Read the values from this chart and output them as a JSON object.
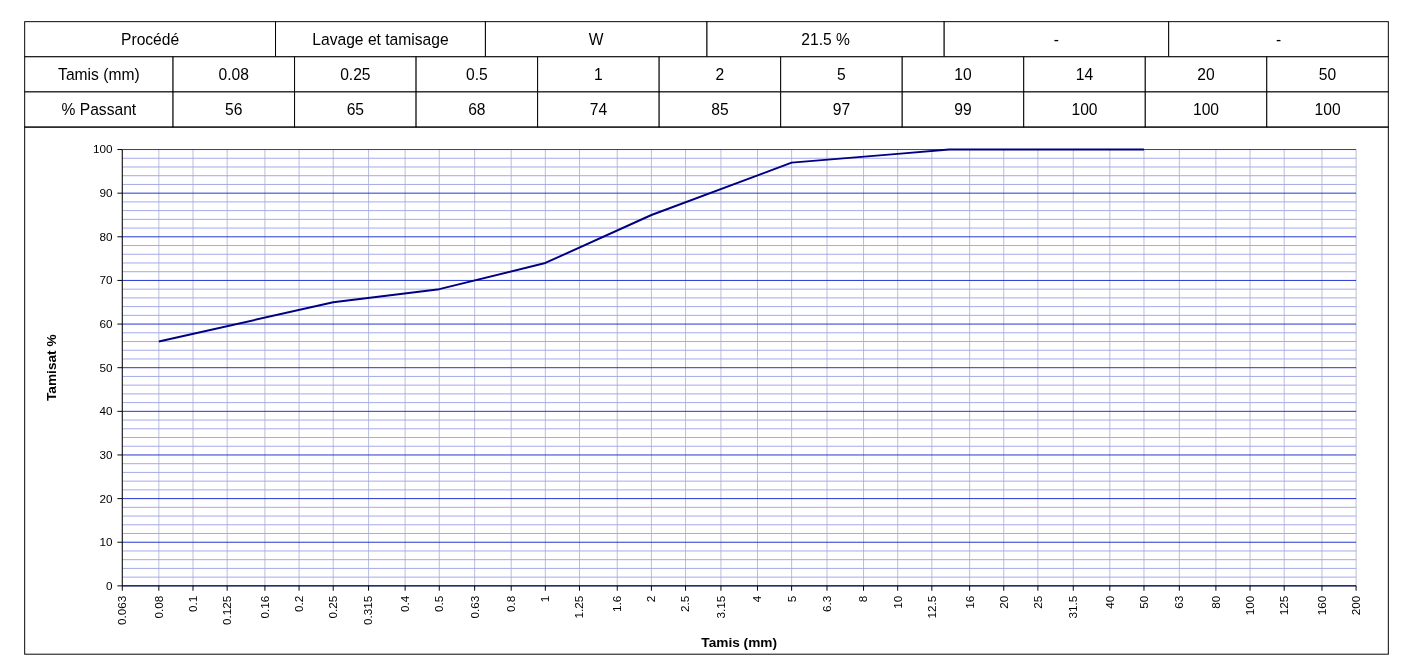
{
  "chart_data": {
    "type": "line",
    "xlabel": "Tamis (mm)",
    "ylabel": "Tamisat %",
    "annotations": [
      "Procédé",
      "Lavage et tamisage",
      "W",
      "21.5 %",
      "-",
      "-",
      "% Passant",
      "0.08",
      "0.25",
      "0.5",
      "1",
      "2",
      "5",
      "10",
      "14",
      "20",
      "50",
      "56",
      "65",
      "68",
      "74",
      "85",
      "97",
      "99",
      "100",
      "100",
      "100"
    ],
    "x": [
      0.08,
      0.25,
      0.5,
      1,
      2,
      5,
      10,
      14,
      20,
      50
    ],
    "series": [
      {
        "color": "#000080",
        "values": [
          56,
          65,
          68,
          74,
          85,
          97,
          99,
          100,
          100,
          100
        ]
      }
    ],
    "log": "x",
    "xlim": [
      0.063,
      200
    ],
    "xticks": [
      0.063,
      0.08,
      0.1,
      0.125,
      0.16,
      0.2,
      0.25,
      0.315,
      0.4,
      0.5,
      0.63,
      0.8,
      1,
      1.25,
      1.6,
      2,
      2.5,
      3.15,
      4,
      5,
      6.3,
      8,
      10,
      12.5,
      16,
      20,
      25,
      31.5,
      40,
      50,
      63,
      80,
      100,
      125,
      160,
      200
    ],
    "ylim": [
      0,
      100
    ],
    "yticks": [
      0,
      {
        "value": 2,
        "label": null
      },
      {
        "value": 4,
        "label": null
      },
      {
        "value": 6,
        "label": null
      },
      {
        "value": 8,
        "label": null
      },
      10,
      {
        "value": 12,
        "label": null
      },
      {
        "value": 14,
        "label": null
      },
      {
        "value": 16,
        "label": null
      },
      {
        "value": 18,
        "label": null
      },
      20,
      {
        "value": 22,
        "label": null
      },
      {
        "value": 24,
        "label": null
      },
      {
        "value": 26,
        "label": null
      },
      {
        "value": 28,
        "label": null
      },
      30,
      {
        "value": 32,
        "label": null
      },
      {
        "value": 34,
        "label": null
      },
      {
        "value": 36,
        "label": null
      },
      {
        "value": 38,
        "label": null
      },
      40,
      {
        "value": 42,
        "label": null
      },
      {
        "value": 44,
        "label": null
      },
      {
        "value": 46,
        "label": null
      },
      {
        "value": 48,
        "label": null
      },
      50,
      {
        "value": 52,
        "label": null
      },
      {
        "value": 54,
        "label": null
      },
      {
        "value": 56,
        "label": null
      },
      {
        "value": 58,
        "label": null
      },
      60,
      {
        "value": 62,
        "label": null
      },
      {
        "value": 64,
        "label": null
      },
      {
        "value": 66,
        "label": null
      },
      {
        "value": 68,
        "label": null
      },
      70,
      {
        "value": 72,
        "label": null
      },
      {
        "value": 74,
        "label": null
      },
      {
        "value": 76,
        "label": null
      },
      {
        "value": 78,
        "label": null
      },
      80,
      {
        "value": 82,
        "label": null
      },
      {
        "value": 84,
        "label": null
      },
      {
        "value": 86,
        "label": null
      },
      {
        "value": 88,
        "label": null
      },
      90,
      {
        "value": 92,
        "label": null
      },
      {
        "value": 94,
        "label": null
      },
      {
        "value": 96,
        "label": null
      },
      {
        "value": 98,
        "label": null
      },
      100
    ],
    "grid": true,
    "marker": "none",
    "line_style": "solid"
  }
}
